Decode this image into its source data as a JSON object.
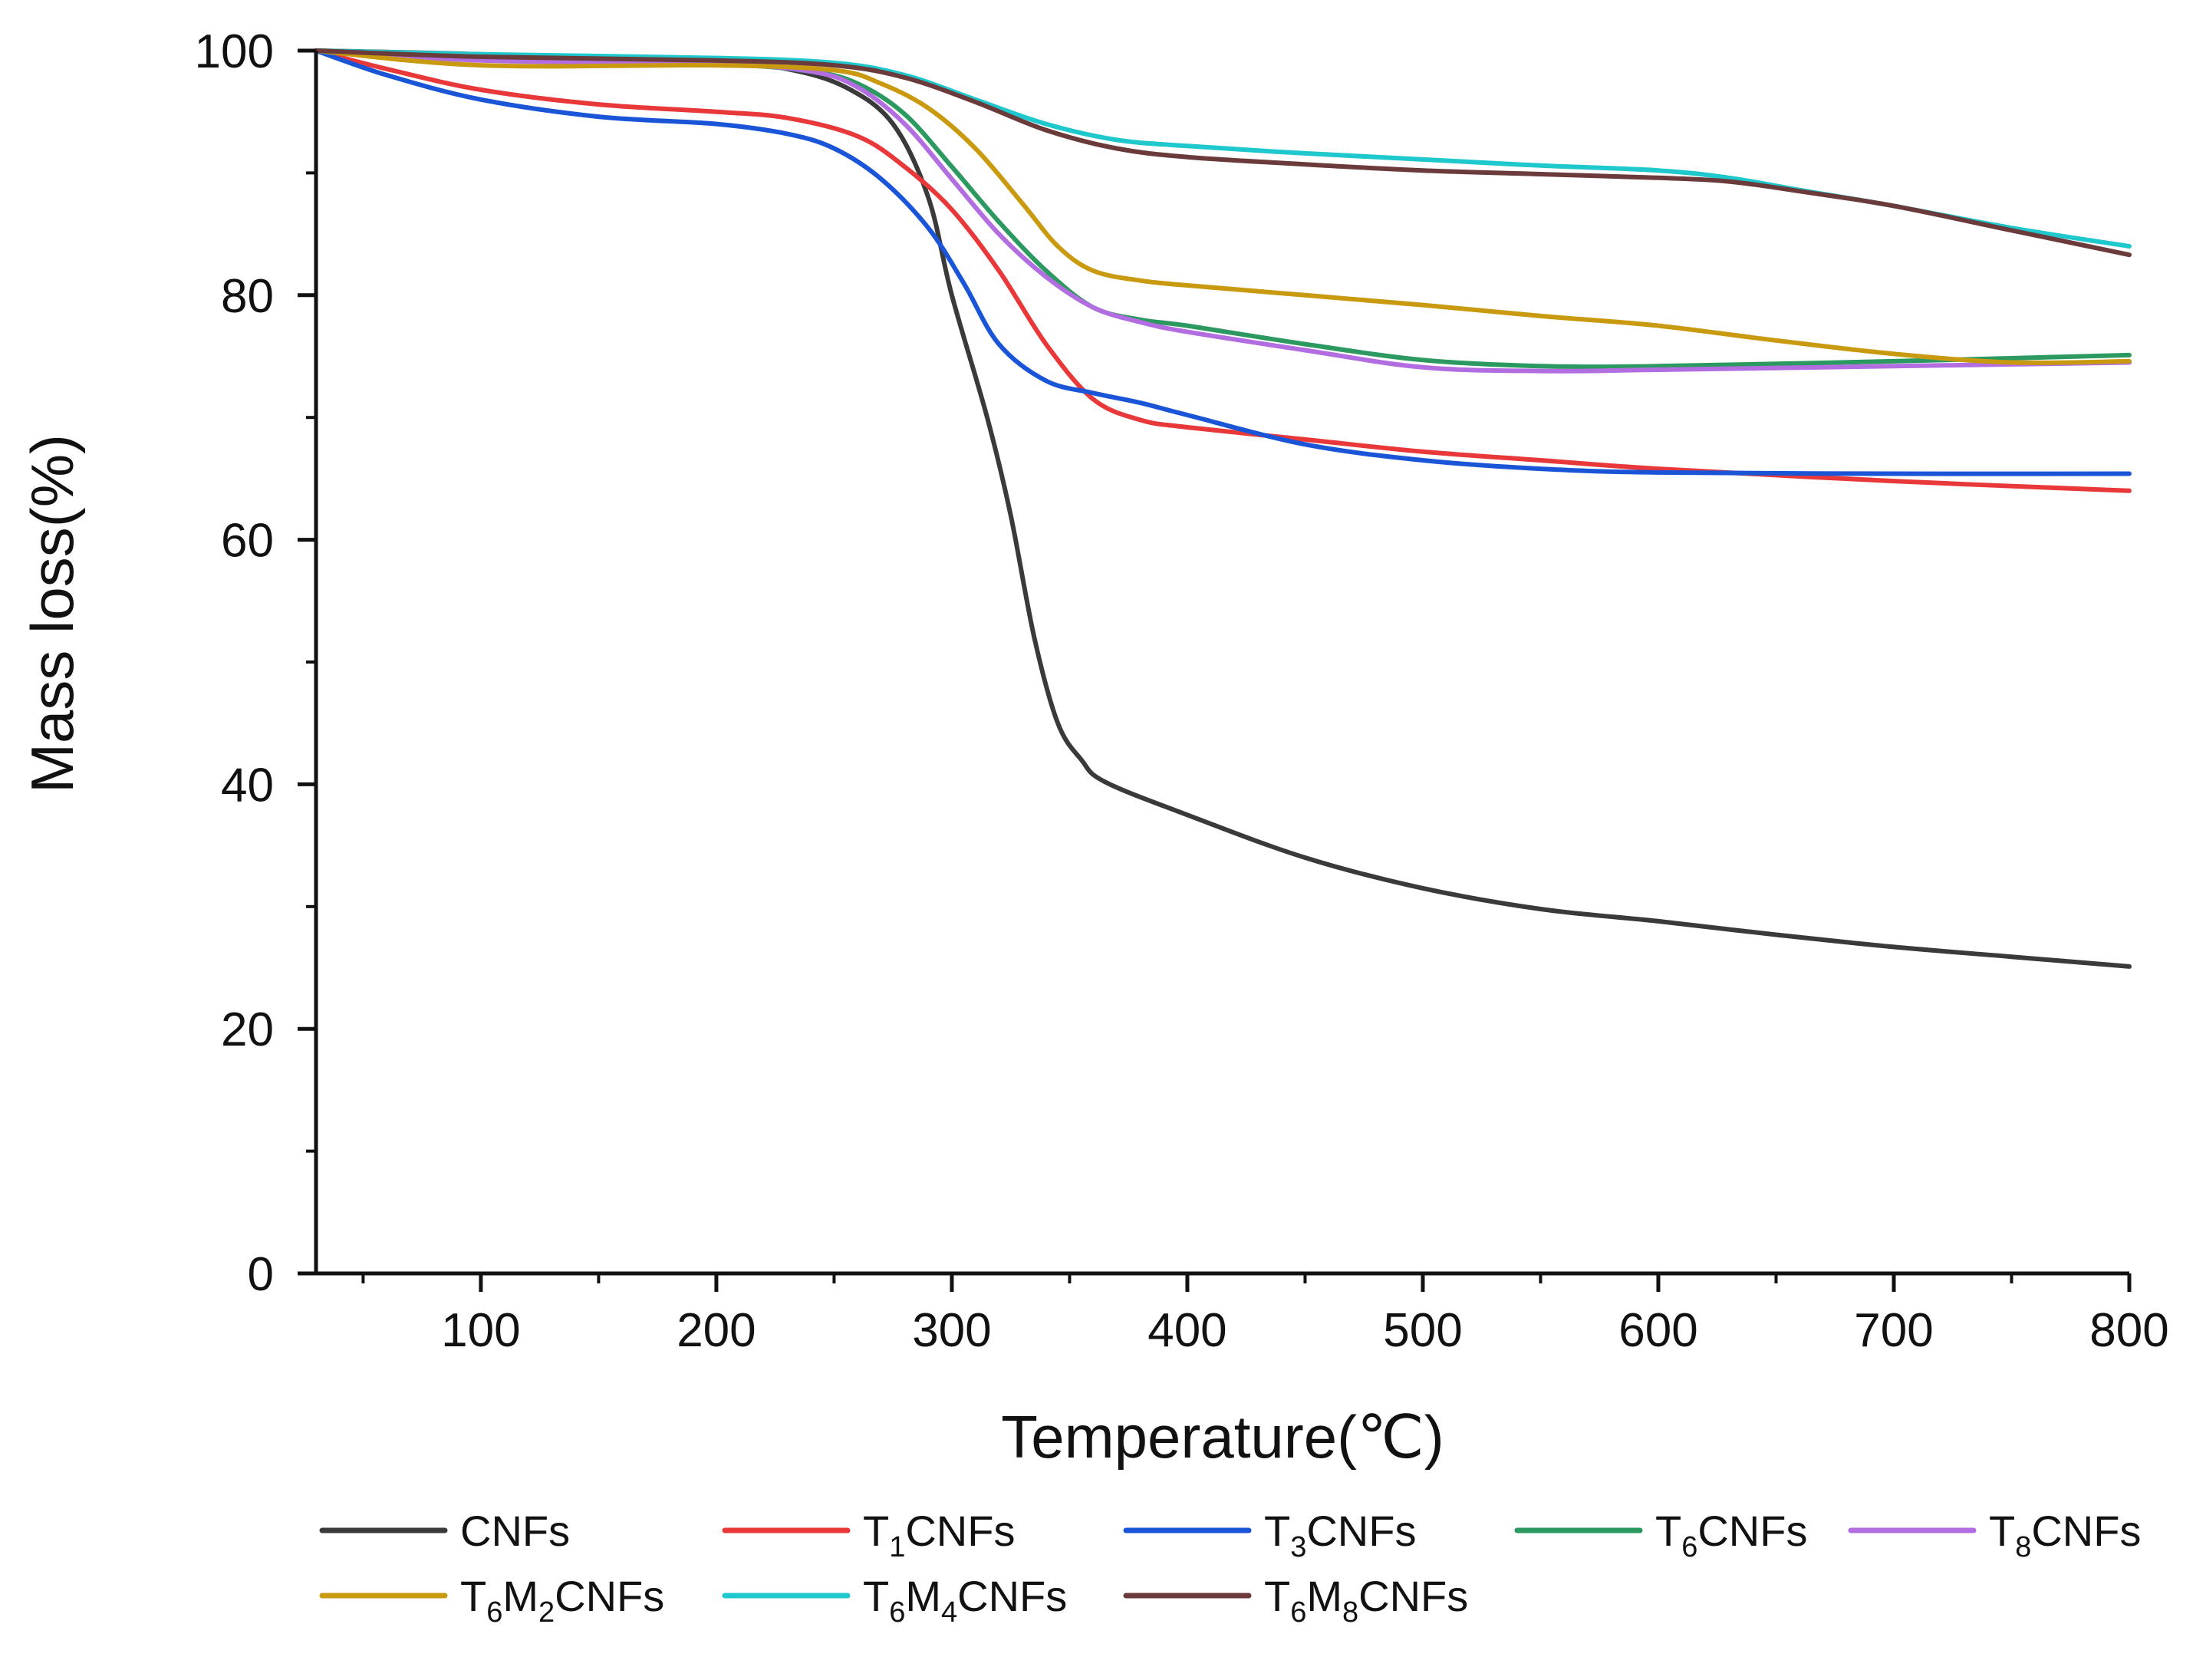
{
  "chart_data": {
    "type": "line",
    "title": "",
    "xlabel": "Temperature(℃)",
    "ylabel": "Mass loss(%)",
    "xlim": [
      30,
      800
    ],
    "ylim": [
      0,
      100
    ],
    "x_ticks": [
      100,
      200,
      300,
      400,
      500,
      600,
      700,
      800
    ],
    "x_minor_ticks": [
      50,
      150,
      250,
      350,
      450,
      550,
      650,
      750
    ],
    "y_ticks": [
      0,
      20,
      40,
      60,
      80,
      100
    ],
    "y_minor_ticks": [
      10,
      30,
      50,
      70,
      90
    ],
    "x_tick_labels": [
      "100",
      "200",
      "300",
      "400",
      "500",
      "600",
      "700",
      "800"
    ],
    "y_tick_labels": [
      "0",
      "20",
      "40",
      "60",
      "80",
      "100"
    ],
    "grid": false,
    "legend_position": "bottom",
    "series": [
      {
        "name": "CNFs",
        "label_parts": [
          {
            "t": "CNFs"
          }
        ],
        "color": "#3a3a3a",
        "points": [
          [
            30,
            100
          ],
          [
            100,
            99.7
          ],
          [
            200,
            99
          ],
          [
            230,
            98.5
          ],
          [
            255,
            97
          ],
          [
            275,
            94
          ],
          [
            290,
            88
          ],
          [
            300,
            80
          ],
          [
            315,
            70
          ],
          [
            325,
            62
          ],
          [
            335,
            52
          ],
          [
            345,
            45
          ],
          [
            355,
            42
          ],
          [
            365,
            40.2
          ],
          [
            400,
            37.5
          ],
          [
            450,
            34
          ],
          [
            500,
            31.5
          ],
          [
            550,
            29.8
          ],
          [
            600,
            28.8
          ],
          [
            650,
            27.7
          ],
          [
            700,
            26.7
          ],
          [
            750,
            25.9
          ],
          [
            800,
            25.1
          ]
        ]
      },
      {
        "name": "T1CNFs",
        "label_parts": [
          {
            "t": "T"
          },
          {
            "t": "1",
            "sub": true
          },
          {
            "t": "CNFs"
          }
        ],
        "color": "#e8383a",
        "points": [
          [
            30,
            100
          ],
          [
            60,
            98.5
          ],
          [
            100,
            96.8
          ],
          [
            150,
            95.6
          ],
          [
            200,
            95
          ],
          [
            230,
            94.5
          ],
          [
            260,
            93
          ],
          [
            280,
            90.5
          ],
          [
            300,
            87
          ],
          [
            320,
            82
          ],
          [
            340,
            76
          ],
          [
            360,
            71.5
          ],
          [
            380,
            69.8
          ],
          [
            400,
            69.2
          ],
          [
            450,
            68.2
          ],
          [
            500,
            67.2
          ],
          [
            550,
            66.5
          ],
          [
            600,
            65.8
          ],
          [
            700,
            64.8
          ],
          [
            800,
            64
          ]
        ]
      },
      {
        "name": "T3CNFs",
        "label_parts": [
          {
            "t": "T"
          },
          {
            "t": "3",
            "sub": true
          },
          {
            "t": "CNFs"
          }
        ],
        "color": "#1a55d8",
        "points": [
          [
            30,
            100
          ],
          [
            60,
            98
          ],
          [
            100,
            96
          ],
          [
            150,
            94.6
          ],
          [
            200,
            94
          ],
          [
            230,
            93.2
          ],
          [
            250,
            92
          ],
          [
            270,
            89.5
          ],
          [
            290,
            85.5
          ],
          [
            305,
            81
          ],
          [
            320,
            76
          ],
          [
            340,
            73
          ],
          [
            360,
            72
          ],
          [
            380,
            71.2
          ],
          [
            400,
            70.2
          ],
          [
            450,
            67.8
          ],
          [
            500,
            66.5
          ],
          [
            550,
            65.8
          ],
          [
            600,
            65.5
          ],
          [
            700,
            65.4
          ],
          [
            800,
            65.4
          ]
        ]
      },
      {
        "name": "T6CNFs",
        "label_parts": [
          {
            "t": "T"
          },
          {
            "t": "6",
            "sub": true
          },
          {
            "t": "CNFs"
          }
        ],
        "color": "#2c9a60",
        "points": [
          [
            30,
            100
          ],
          [
            100,
            99.3
          ],
          [
            200,
            98.9
          ],
          [
            240,
            98.3
          ],
          [
            260,
            97.3
          ],
          [
            280,
            94.8
          ],
          [
            300,
            90.5
          ],
          [
            320,
            86
          ],
          [
            340,
            82
          ],
          [
            360,
            79
          ],
          [
            380,
            78
          ],
          [
            400,
            77.5
          ],
          [
            450,
            76
          ],
          [
            500,
            74.7
          ],
          [
            550,
            74.2
          ],
          [
            600,
            74.2
          ],
          [
            700,
            74.6
          ],
          [
            800,
            75.1
          ]
        ]
      },
      {
        "name": "T8CNFs",
        "label_parts": [
          {
            "t": "T"
          },
          {
            "t": "8",
            "sub": true
          },
          {
            "t": "CNFs"
          }
        ],
        "color": "#b26de0",
        "points": [
          [
            30,
            100
          ],
          [
            100,
            99.2
          ],
          [
            200,
            98.9
          ],
          [
            240,
            98.3
          ],
          [
            260,
            97
          ],
          [
            280,
            94
          ],
          [
            300,
            89.5
          ],
          [
            320,
            85
          ],
          [
            340,
            81.5
          ],
          [
            360,
            79
          ],
          [
            380,
            77.8
          ],
          [
            400,
            77
          ],
          [
            450,
            75.5
          ],
          [
            500,
            74.1
          ],
          [
            550,
            73.8
          ],
          [
            600,
            73.9
          ],
          [
            700,
            74.2
          ],
          [
            800,
            74.5
          ]
        ]
      },
      {
        "name": "T6M2CNFs",
        "label_parts": [
          {
            "t": "T"
          },
          {
            "t": "6",
            "sub": true
          },
          {
            "t": "M"
          },
          {
            "t": "2",
            "sub": true
          },
          {
            "t": "CNFs"
          }
        ],
        "color": "#c99a10",
        "points": [
          [
            30,
            100
          ],
          [
            100,
            98.8
          ],
          [
            200,
            98.8
          ],
          [
            250,
            98.4
          ],
          [
            270,
            97.3
          ],
          [
            290,
            95.3
          ],
          [
            310,
            92
          ],
          [
            330,
            87.5
          ],
          [
            345,
            84
          ],
          [
            360,
            82
          ],
          [
            380,
            81.2
          ],
          [
            400,
            80.8
          ],
          [
            450,
            80
          ],
          [
            500,
            79.2
          ],
          [
            550,
            78.3
          ],
          [
            600,
            77.5
          ],
          [
            650,
            76.3
          ],
          [
            700,
            75.2
          ],
          [
            750,
            74.5
          ],
          [
            800,
            74.6
          ]
        ]
      },
      {
        "name": "T6M4CNFs",
        "label_parts": [
          {
            "t": "T"
          },
          {
            "t": "6",
            "sub": true
          },
          {
            "t": "M"
          },
          {
            "t": "4",
            "sub": true
          },
          {
            "t": "CNFs"
          }
        ],
        "color": "#1ec8cc",
        "points": [
          [
            30,
            100
          ],
          [
            100,
            99.7
          ],
          [
            200,
            99.4
          ],
          [
            250,
            99
          ],
          [
            280,
            98
          ],
          [
            310,
            96
          ],
          [
            340,
            94
          ],
          [
            370,
            92.7
          ],
          [
            400,
            92.2
          ],
          [
            450,
            91.6
          ],
          [
            500,
            91.1
          ],
          [
            550,
            90.6
          ],
          [
            600,
            90.2
          ],
          [
            630,
            89.6
          ],
          [
            660,
            88.6
          ],
          [
            700,
            87.3
          ],
          [
            750,
            85.5
          ],
          [
            800,
            84
          ]
        ]
      },
      {
        "name": "T6M8CNFs",
        "label_parts": [
          {
            "t": "T"
          },
          {
            "t": "6",
            "sub": true
          },
          {
            "t": "M"
          },
          {
            "t": "8",
            "sub": true
          },
          {
            "t": "CNFs"
          }
        ],
        "color": "#6b3a3a",
        "points": [
          [
            30,
            100
          ],
          [
            100,
            99.5
          ],
          [
            200,
            99.2
          ],
          [
            250,
            98.8
          ],
          [
            280,
            97.8
          ],
          [
            310,
            95.8
          ],
          [
            340,
            93.5
          ],
          [
            370,
            92
          ],
          [
            400,
            91.3
          ],
          [
            450,
            90.7
          ],
          [
            500,
            90.2
          ],
          [
            550,
            89.9
          ],
          [
            600,
            89.6
          ],
          [
            630,
            89.3
          ],
          [
            660,
            88.5
          ],
          [
            700,
            87.3
          ],
          [
            750,
            85.3
          ],
          [
            800,
            83.3
          ]
        ]
      }
    ]
  }
}
